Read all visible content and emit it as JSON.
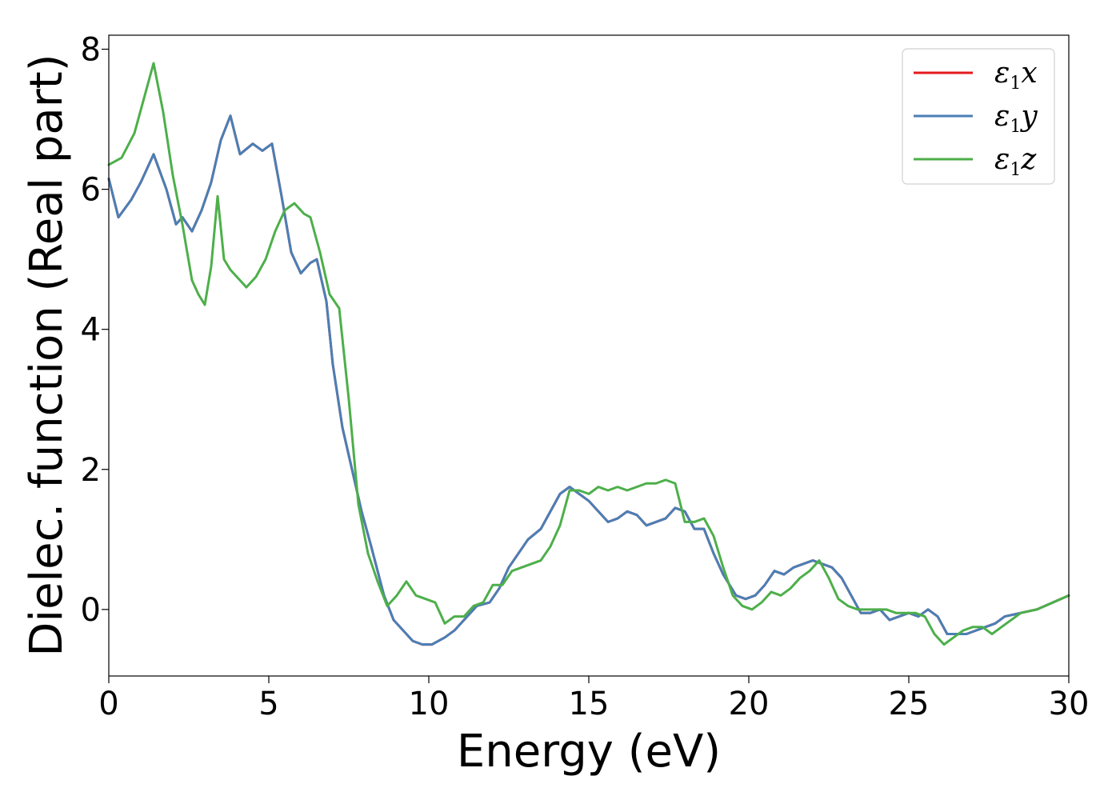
{
  "chart_data": {
    "type": "line",
    "xlabel": "Energy (eV)",
    "ylabel": "Dielec. function (Real part)",
    "xlim": [
      0,
      30
    ],
    "ylim": [
      -0.95,
      8.2
    ],
    "xticks": [
      0,
      5,
      10,
      15,
      20,
      25,
      30
    ],
    "yticks": [
      0,
      2,
      4,
      6,
      8
    ],
    "grid": false,
    "legend_position": "top-right",
    "series": [
      {
        "name": "ε1x",
        "legend_main": "ε",
        "legend_sub": "1",
        "legend_var": "x",
        "color": "#e41a1c",
        "x": [
          0,
          0.3,
          0.7,
          1.0,
          1.4,
          1.8,
          2.1,
          2.3,
          2.6,
          2.9,
          3.2,
          3.5,
          3.8,
          4.1,
          4.5,
          4.8,
          5.1,
          5.4,
          5.7,
          6.0,
          6.3,
          6.5,
          6.8,
          7.0,
          7.3,
          7.6,
          7.9,
          8.2,
          8.6,
          8.9,
          9.2,
          9.5,
          9.8,
          10.1,
          10.5,
          10.8,
          11.2,
          11.5,
          11.9,
          12.2,
          12.5,
          12.8,
          13.1,
          13.5,
          13.8,
          14.1,
          14.4,
          14.7,
          15.0,
          15.3,
          15.6,
          15.9,
          16.2,
          16.5,
          16.8,
          17.1,
          17.4,
          17.7,
          18.0,
          18.3,
          18.6,
          18.9,
          19.2,
          19.6,
          19.9,
          20.2,
          20.5,
          20.8,
          21.1,
          21.4,
          21.7,
          22.0,
          22.3,
          22.6,
          22.9,
          23.2,
          23.5,
          23.8,
          24.1,
          24.4,
          24.7,
          25.0,
          25.3,
          25.6,
          25.9,
          26.2,
          26.5,
          26.8,
          27.1,
          27.4,
          27.7,
          28.0,
          28.5,
          29.0,
          29.5,
          30.0
        ],
        "y": [
          6.15,
          5.6,
          5.85,
          6.1,
          6.5,
          6.0,
          5.5,
          5.6,
          5.4,
          5.7,
          6.1,
          6.7,
          7.05,
          6.5,
          6.65,
          6.55,
          6.65,
          5.9,
          5.1,
          4.8,
          4.95,
          5.0,
          4.4,
          3.5,
          2.6,
          2.0,
          1.4,
          0.9,
          0.2,
          -0.15,
          -0.3,
          -0.45,
          -0.5,
          -0.5,
          -0.4,
          -0.3,
          -0.1,
          0.05,
          0.1,
          0.3,
          0.6,
          0.8,
          1.0,
          1.15,
          1.4,
          1.65,
          1.75,
          1.65,
          1.55,
          1.4,
          1.25,
          1.3,
          1.4,
          1.35,
          1.2,
          1.25,
          1.3,
          1.45,
          1.4,
          1.15,
          1.15,
          0.8,
          0.5,
          0.2,
          0.15,
          0.2,
          0.35,
          0.55,
          0.5,
          0.6,
          0.65,
          0.7,
          0.65,
          0.6,
          0.45,
          0.2,
          -0.05,
          -0.05,
          0.0,
          -0.15,
          -0.1,
          -0.05,
          -0.1,
          0.0,
          -0.1,
          -0.35,
          -0.35,
          -0.35,
          -0.3,
          -0.25,
          -0.2,
          -0.1,
          -0.05,
          0.0,
          0.1,
          0.2
        ]
      },
      {
        "name": "ε1y",
        "legend_main": "ε",
        "legend_sub": "1",
        "legend_var": "y",
        "color": "#4a7fb5",
        "x": [
          0,
          0.3,
          0.7,
          1.0,
          1.4,
          1.8,
          2.1,
          2.3,
          2.6,
          2.9,
          3.2,
          3.5,
          3.8,
          4.1,
          4.5,
          4.8,
          5.1,
          5.4,
          5.7,
          6.0,
          6.3,
          6.5,
          6.8,
          7.0,
          7.3,
          7.6,
          7.9,
          8.2,
          8.6,
          8.9,
          9.2,
          9.5,
          9.8,
          10.1,
          10.5,
          10.8,
          11.2,
          11.5,
          11.9,
          12.2,
          12.5,
          12.8,
          13.1,
          13.5,
          13.8,
          14.1,
          14.4,
          14.7,
          15.0,
          15.3,
          15.6,
          15.9,
          16.2,
          16.5,
          16.8,
          17.1,
          17.4,
          17.7,
          18.0,
          18.3,
          18.6,
          18.9,
          19.2,
          19.6,
          19.9,
          20.2,
          20.5,
          20.8,
          21.1,
          21.4,
          21.7,
          22.0,
          22.3,
          22.6,
          22.9,
          23.2,
          23.5,
          23.8,
          24.1,
          24.4,
          24.7,
          25.0,
          25.3,
          25.6,
          25.9,
          26.2,
          26.5,
          26.8,
          27.1,
          27.4,
          27.7,
          28.0,
          28.5,
          29.0,
          29.5,
          30.0
        ],
        "y": [
          6.15,
          5.6,
          5.85,
          6.1,
          6.5,
          6.0,
          5.5,
          5.6,
          5.4,
          5.7,
          6.1,
          6.7,
          7.05,
          6.5,
          6.65,
          6.55,
          6.65,
          5.9,
          5.1,
          4.8,
          4.95,
          5.0,
          4.4,
          3.5,
          2.6,
          2.0,
          1.4,
          0.9,
          0.2,
          -0.15,
          -0.3,
          -0.45,
          -0.5,
          -0.5,
          -0.4,
          -0.3,
          -0.1,
          0.05,
          0.1,
          0.3,
          0.6,
          0.8,
          1.0,
          1.15,
          1.4,
          1.65,
          1.75,
          1.65,
          1.55,
          1.4,
          1.25,
          1.3,
          1.4,
          1.35,
          1.2,
          1.25,
          1.3,
          1.45,
          1.4,
          1.15,
          1.15,
          0.8,
          0.5,
          0.2,
          0.15,
          0.2,
          0.35,
          0.55,
          0.5,
          0.6,
          0.65,
          0.7,
          0.65,
          0.6,
          0.45,
          0.2,
          -0.05,
          -0.05,
          0.0,
          -0.15,
          -0.1,
          -0.05,
          -0.1,
          0.0,
          -0.1,
          -0.35,
          -0.35,
          -0.35,
          -0.3,
          -0.25,
          -0.2,
          -0.1,
          -0.05,
          0.0,
          0.1,
          0.2
        ]
      },
      {
        "name": "ε1z",
        "legend_main": "ε",
        "legend_sub": "1",
        "legend_var": "z",
        "color": "#4daf4a",
        "x": [
          0,
          0.4,
          0.8,
          1.1,
          1.4,
          1.7,
          2.0,
          2.3,
          2.6,
          2.8,
          3.0,
          3.2,
          3.4,
          3.6,
          3.8,
          4.0,
          4.3,
          4.6,
          4.9,
          5.2,
          5.5,
          5.8,
          6.1,
          6.3,
          6.6,
          6.9,
          7.2,
          7.5,
          7.8,
          8.1,
          8.4,
          8.7,
          9.0,
          9.3,
          9.6,
          9.9,
          10.2,
          10.5,
          10.8,
          11.1,
          11.4,
          11.7,
          12.0,
          12.3,
          12.6,
          12.9,
          13.2,
          13.5,
          13.8,
          14.1,
          14.4,
          14.7,
          15.0,
          15.3,
          15.6,
          15.9,
          16.2,
          16.5,
          16.8,
          17.1,
          17.4,
          17.7,
          18.0,
          18.3,
          18.6,
          18.9,
          19.2,
          19.5,
          19.8,
          20.1,
          20.4,
          20.7,
          21.0,
          21.3,
          21.6,
          21.9,
          22.2,
          22.5,
          22.8,
          23.1,
          23.4,
          23.7,
          24.0,
          24.3,
          24.6,
          24.9,
          25.2,
          25.5,
          25.8,
          26.1,
          26.4,
          26.7,
          27.0,
          27.3,
          27.6,
          27.9,
          28.2,
          28.5,
          29.0,
          29.5,
          30.0
        ],
        "y": [
          6.35,
          6.45,
          6.8,
          7.3,
          7.8,
          7.1,
          6.2,
          5.5,
          4.7,
          4.5,
          4.35,
          4.9,
          5.9,
          5.0,
          4.85,
          4.75,
          4.6,
          4.75,
          5.0,
          5.4,
          5.7,
          5.8,
          5.65,
          5.6,
          5.1,
          4.5,
          4.3,
          3.0,
          1.5,
          0.8,
          0.4,
          0.05,
          0.2,
          0.4,
          0.2,
          0.15,
          0.1,
          -0.2,
          -0.1,
          -0.1,
          0.05,
          0.1,
          0.35,
          0.35,
          0.55,
          0.6,
          0.65,
          0.7,
          0.9,
          1.2,
          1.7,
          1.7,
          1.65,
          1.75,
          1.7,
          1.75,
          1.7,
          1.75,
          1.8,
          1.8,
          1.85,
          1.8,
          1.25,
          1.25,
          1.3,
          1.05,
          0.6,
          0.2,
          0.05,
          0.0,
          0.1,
          0.25,
          0.2,
          0.3,
          0.45,
          0.55,
          0.7,
          0.45,
          0.15,
          0.05,
          0.0,
          0.0,
          0.0,
          0.0,
          -0.05,
          -0.05,
          -0.05,
          -0.1,
          -0.35,
          -0.5,
          -0.4,
          -0.3,
          -0.25,
          -0.25,
          -0.35,
          -0.25,
          -0.15,
          -0.05,
          0.0,
          0.1,
          0.2
        ]
      }
    ]
  }
}
